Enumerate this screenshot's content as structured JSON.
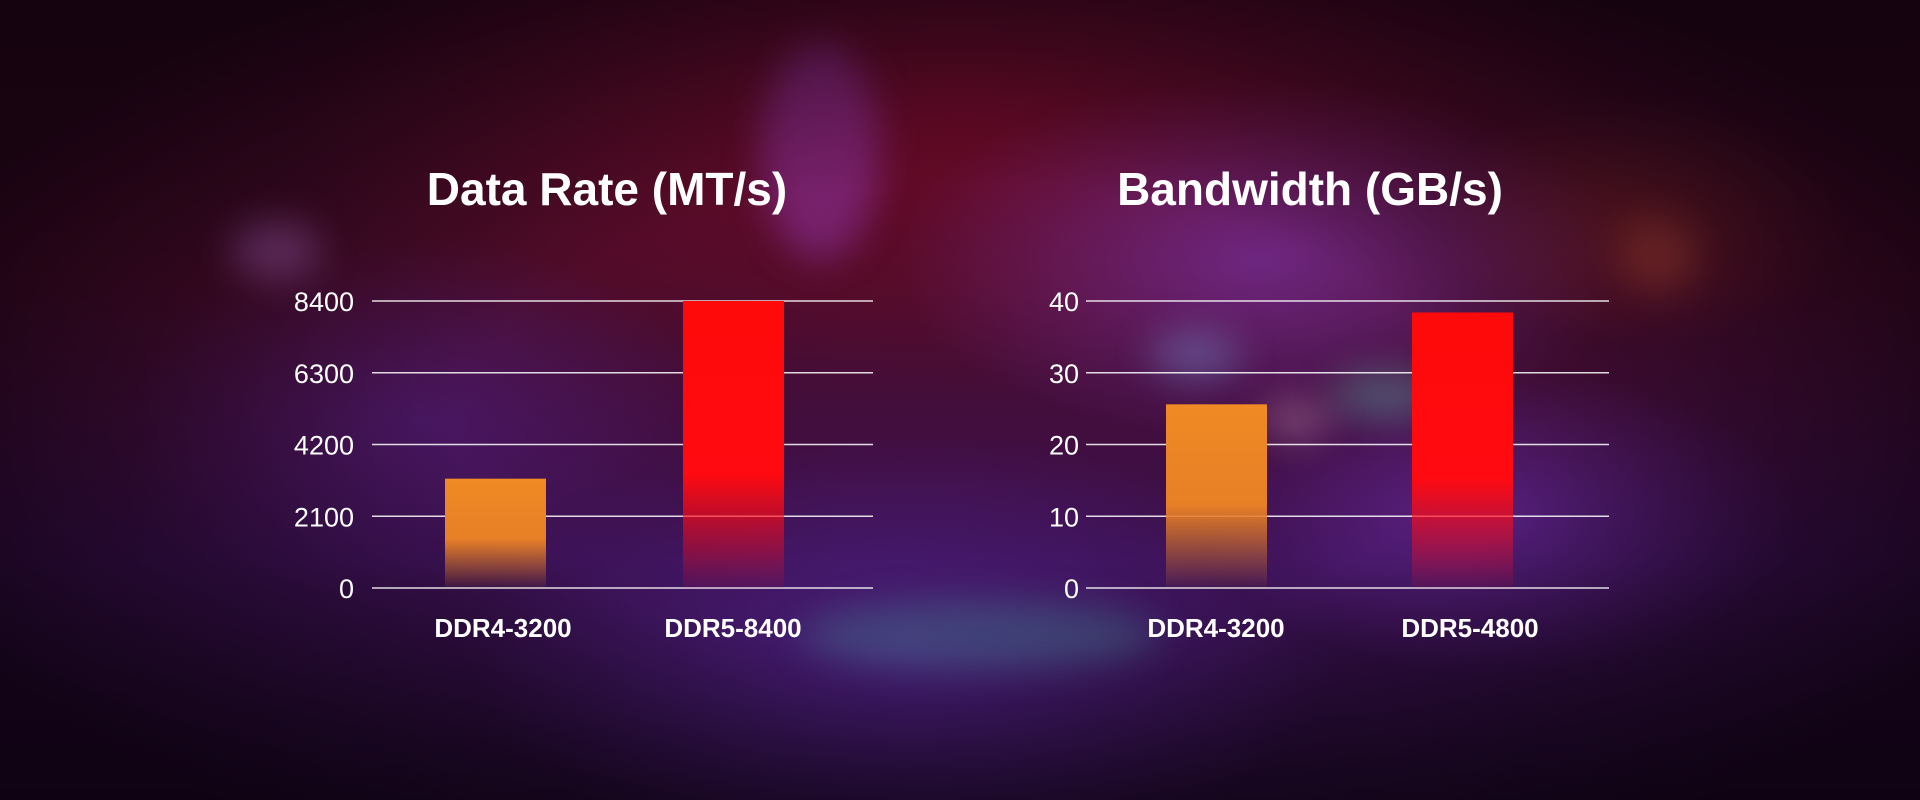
{
  "colors": {
    "ddr4": "#f08a24",
    "ddr5": "#ff0a0a",
    "text": "#ffffff",
    "grid": "#ffffff"
  },
  "chart_data": [
    {
      "type": "bar",
      "title": "Data Rate (MT/s)",
      "categories": [
        "DDR4-3200",
        "DDR5-8400"
      ],
      "values": [
        3200,
        8400
      ],
      "yticks": [
        "0",
        "2100",
        "4200",
        "6300",
        "8400"
      ],
      "ylim": [
        0,
        8400
      ],
      "grid": true,
      "legend": false
    },
    {
      "type": "bar",
      "title": "Bandwidth (GB/s)",
      "categories": [
        "DDR4-3200",
        "DDR5-4800"
      ],
      "values": [
        25.6,
        38.4
      ],
      "yticks": [
        "0",
        "10",
        "20",
        "30",
        "40"
      ],
      "ylim": [
        0,
        40
      ],
      "grid": true,
      "legend": false
    }
  ]
}
